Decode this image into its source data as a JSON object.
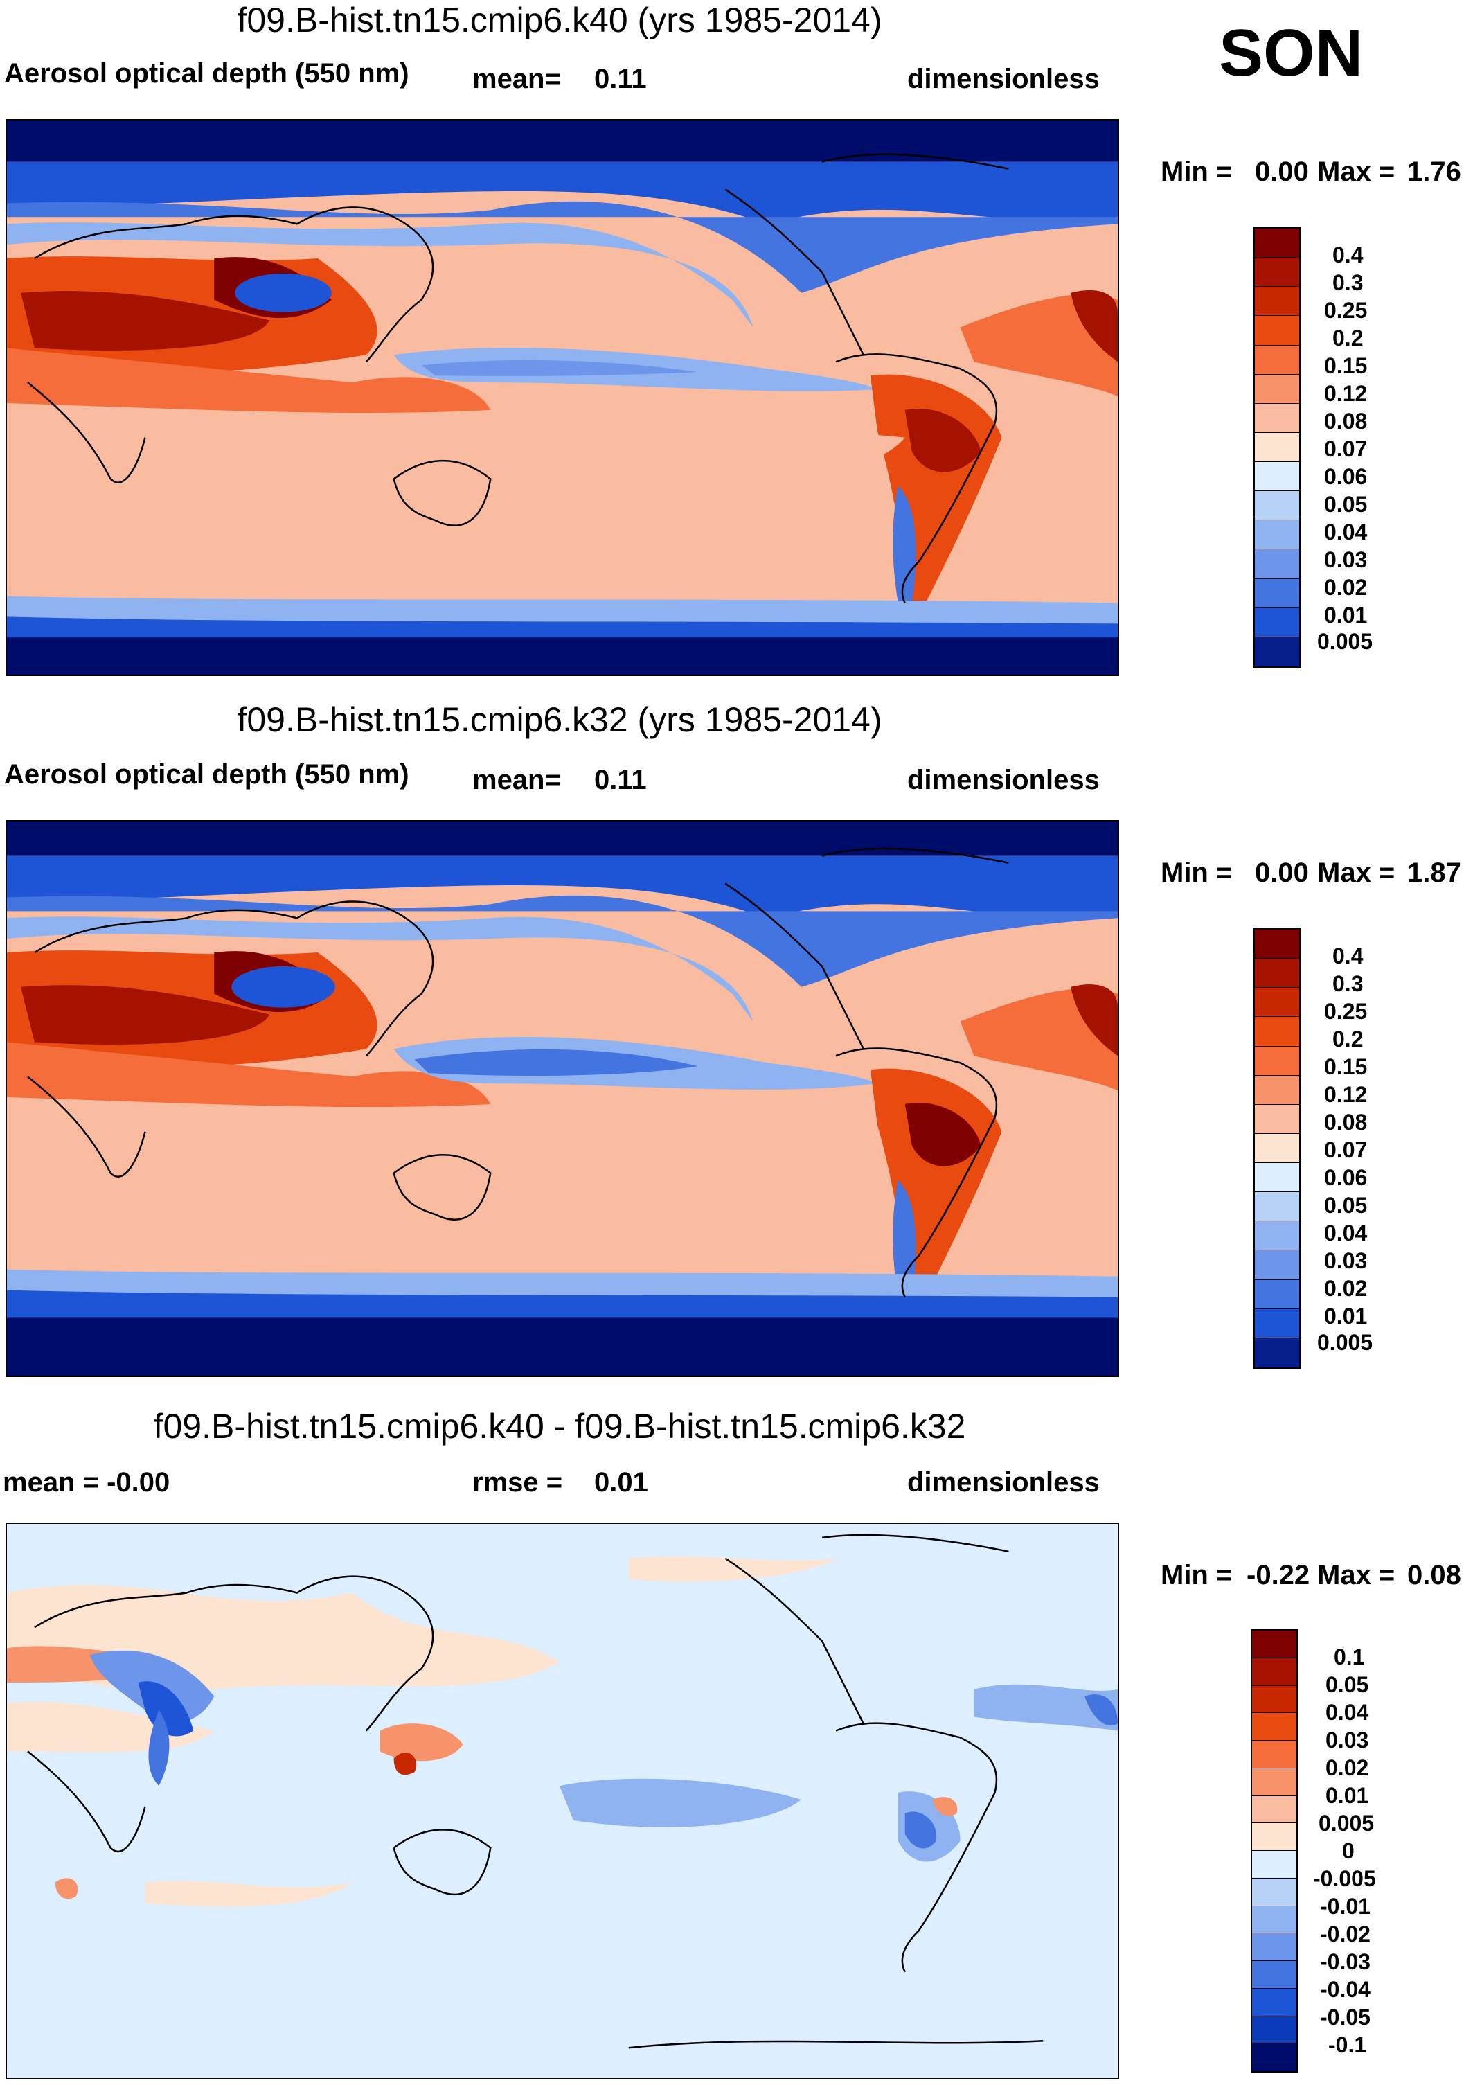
{
  "season": "SON",
  "colors": {
    "reds": [
      "#7f0000",
      "#a51200",
      "#c82800",
      "#e84a10",
      "#f46d3a",
      "#f7936a",
      "#f9bca0",
      "#fde4d0"
    ],
    "blues": [
      "#ddeeff",
      "#b7d2f7",
      "#8fb3f0",
      "#6d96ea",
      "#4474e0",
      "#1e54d6",
      "#0b3bb8",
      "#061f8a",
      "#000c6a"
    ],
    "coast": "#000000"
  },
  "panels": [
    {
      "title": "f09.B-hist.tn15.cmip6.k40 (yrs 1985-2014)",
      "left_label": "Aerosol optical depth (550 nm)",
      "center_label": "mean=",
      "center_value": "0.11",
      "right_label": "dimensionless",
      "min_label": "Min =",
      "min_value": "0.00",
      "max_label": "Max =",
      "max_value": "1.76",
      "colorbar_labels": [
        "0.4",
        "0.3",
        "0.25",
        "0.2",
        "0.15",
        "0.12",
        "0.08",
        "0.07",
        "0.06",
        "0.05",
        "0.04",
        "0.03",
        "0.02",
        "0.01",
        "0.005"
      ]
    },
    {
      "title": "f09.B-hist.tn15.cmip6.k32 (yrs 1985-2014)",
      "left_label": "Aerosol optical depth (550 nm)",
      "center_label": "mean=",
      "center_value": "0.11",
      "right_label": "dimensionless",
      "min_label": "Min =",
      "min_value": "0.00",
      "max_label": "Max =",
      "max_value": "1.87",
      "colorbar_labels": [
        "0.4",
        "0.3",
        "0.25",
        "0.2",
        "0.15",
        "0.12",
        "0.08",
        "0.07",
        "0.06",
        "0.05",
        "0.04",
        "0.03",
        "0.02",
        "0.01",
        "0.005"
      ]
    },
    {
      "title": "f09.B-hist.tn15.cmip6.k40 - f09.B-hist.tn15.cmip6.k32",
      "left_label": "mean =  -0.00",
      "center_label": "rmse =",
      "center_value": "0.01",
      "right_label": "dimensionless",
      "min_label": "Min =",
      "min_value": "-0.22",
      "max_label": "Max =",
      "max_value": "0.08",
      "colorbar_labels": [
        "0.1",
        "0.05",
        "0.04",
        "0.03",
        "0.02",
        "0.01",
        "0.005",
        "0",
        "-0.005",
        "-0.01",
        "-0.02",
        "-0.03",
        "-0.04",
        "-0.05",
        "-0.1"
      ]
    }
  ]
}
